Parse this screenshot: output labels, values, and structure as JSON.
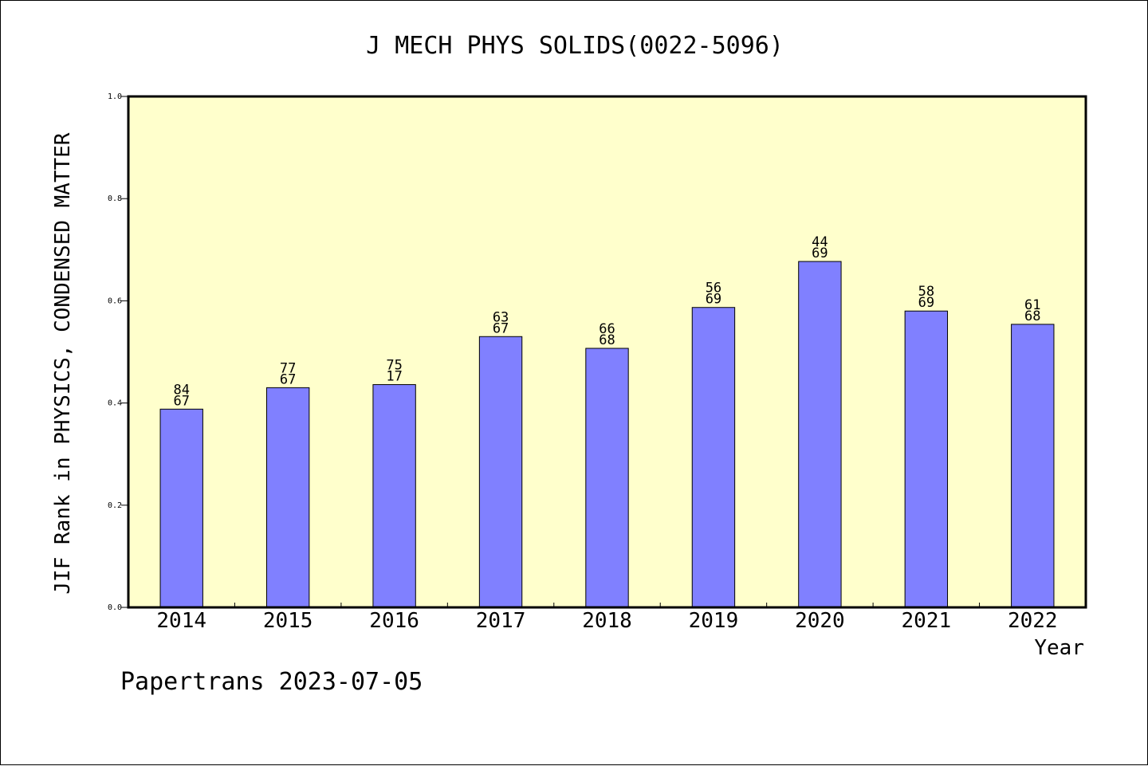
{
  "chart_data": {
    "type": "bar",
    "title": "J MECH PHYS SOLIDS(0022-5096)",
    "xlabel": "Year",
    "ylabel": "JIF Rank in PHYSICS, CONDENSED MATTER",
    "categories": [
      "2014",
      "2015",
      "2016",
      "2017",
      "2018",
      "2019",
      "2020",
      "2021",
      "2022"
    ],
    "values": [
      0.388,
      0.43,
      0.436,
      0.53,
      0.507,
      0.587,
      0.677,
      0.58,
      0.554
    ],
    "bar_labels": [
      [
        "84",
        "67"
      ],
      [
        "77",
        "67"
      ],
      [
        "75",
        "17"
      ],
      [
        "63",
        "67"
      ],
      [
        "66",
        "68"
      ],
      [
        "56",
        "69"
      ],
      [
        "44",
        "69"
      ],
      [
        "58",
        "69"
      ],
      [
        "61",
        "68"
      ]
    ],
    "ylim": [
      0,
      1.0
    ],
    "yticks": [
      "0.0",
      "0.2",
      "0.4",
      "0.6",
      "0.8",
      "1.0"
    ],
    "grid": false,
    "colors": {
      "plot_background": "#ffffcc",
      "bar_fill": "#8080ff",
      "bar_stroke": "#000000"
    }
  },
  "footer": {
    "text": "Papertrans 2023-07-05"
  }
}
